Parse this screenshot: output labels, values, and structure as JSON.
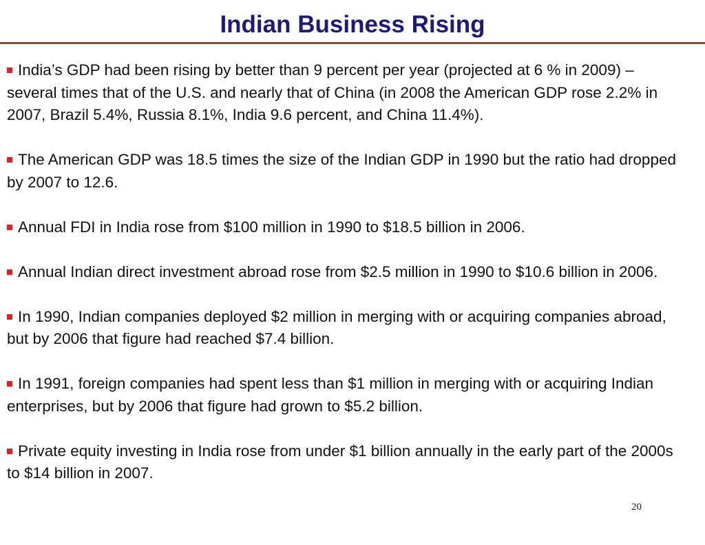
{
  "slide": {
    "title": "Indian Business Rising",
    "page_number": "20",
    "bullet_color": "#e02020",
    "title_color": "#1c1a7a",
    "rule_color": "#d42a23"
  },
  "bullets": [
    "India’s GDP had been rising by better than 9 percent per year (projected at 6 % in 2009) – several times that of the U.S. and nearly that of China (in 2008 the American GDP rose 2.2% in 2007, Brazil 5.4%, Russia 8.1%, India 9.6 percent, and China 11.4%).",
    "The American GDP was 18.5 times the size of the Indian GDP in 1990 but the ratio had dropped by 2007 to 12.6.",
    "Annual FDI in India rose from $100 million in 1990 to $18.5 billion in 2006.",
    "Annual Indian direct investment abroad rose from $2.5 million in 1990 to $10.6 billion in 2006.",
    "In 1990, Indian companies deployed $2 million in merging with or acquiring companies abroad, but by 2006 that figure had reached $7.4 billion.",
    "In 1991, foreign companies had spent less than $1 million in merging with or acquiring Indian enterprises, but by 2006 that figure had grown to $5.2 billion.",
    "Private equity investing in India rose from under $1 billion annually in the early part of the 2000s to $14 billion in 2007."
  ]
}
